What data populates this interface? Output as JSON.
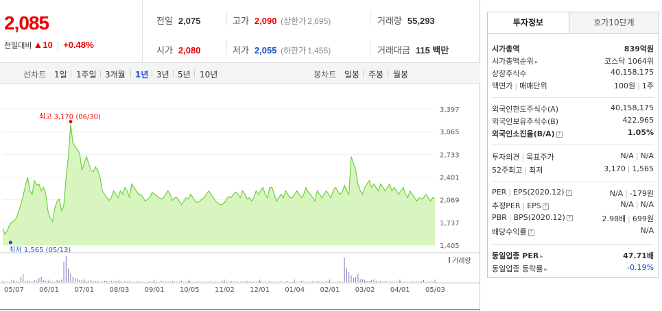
{
  "quote": {
    "price": "2,085",
    "change_label": "전일대비",
    "change_arrow": "▲",
    "change": "10",
    "change_pct": "+0.48%",
    "prev_close_label": "전일",
    "prev_close": "2,075",
    "high_label": "고가",
    "high": "2,090",
    "upper_limit_label": "(상한가",
    "upper_limit": "2,695)",
    "volume_label": "거래량",
    "volume": "55,293",
    "open_label": "시가",
    "open": "2,080",
    "low_label": "저가",
    "low": "2,055",
    "lower_limit_label": "(하한가",
    "lower_limit": "1,455)",
    "amount_label": "거래대금",
    "amount": "115 백만"
  },
  "toolbar": {
    "line_label": "선차트",
    "line_options": [
      "1일",
      "1주일",
      "3개월",
      "1년",
      "3년",
      "5년",
      "10년"
    ],
    "selected_line": "1년",
    "candle_label": "봉차트",
    "candle_options": [
      "일봉",
      "주봉",
      "월봉"
    ]
  },
  "chart_data": {
    "type": "area",
    "y_ticks": [
      "3,397",
      "3,065",
      "2,733",
      "2,401",
      "2,069",
      "1,737",
      "1,405"
    ],
    "ylim": [
      1405,
      3397
    ],
    "x_ticks": [
      "05/07",
      "06/01",
      "07/01",
      "08/03",
      "09/01",
      "10/05",
      "11/02",
      "12/01",
      "01/04",
      "02/01",
      "03/02",
      "04/01",
      "05/03"
    ],
    "high_annotation": "최고 3,170 (06/30)",
    "low_annotation": "최저 1,565 (05/13)",
    "volume_legend": "거래량",
    "area_color": "#d8f5c0",
    "line_color": "#6fcf3a",
    "series": [
      {
        "values": [
          1650,
          1565,
          1620,
          1700,
          1740,
          1760,
          1800,
          1900,
          2000,
          2120,
          2280,
          2400,
          2200,
          2150,
          2350,
          2280,
          2300,
          2200,
          2250,
          2150,
          1900,
          1800,
          1750,
          1950,
          2050,
          2080,
          1900,
          2000,
          2400,
          2700,
          3170,
          2900,
          2850,
          2800,
          2750,
          2500,
          2600,
          2700,
          2600,
          2500,
          2480,
          2550,
          2500,
          2400,
          2200,
          2150,
          2100,
          2060,
          2100,
          2200,
          2150,
          2100,
          2200,
          2150,
          2250,
          2200,
          2100,
          2300,
          2250,
          2200,
          2150,
          2150,
          2100,
          2050,
          2080,
          2100,
          2180,
          2150,
          2130,
          2100,
          2080,
          2100,
          2150,
          2200,
          2150,
          2060,
          2100,
          2100,
          2050,
          2000,
          2050,
          2100,
          2080,
          2150,
          2100,
          2050,
          2030,
          2050,
          2080,
          2100,
          2150,
          2200,
          2150,
          2100,
          2050,
          2020,
          2000,
          2000,
          2030,
          2080,
          2120,
          2100,
          2150,
          2180,
          2150,
          2100,
          2200,
          2150,
          2080,
          2100,
          2050,
          2100,
          2200,
          2150,
          2200,
          2250,
          2150,
          2100,
          2250,
          2250,
          2150,
          2050,
          2100,
          2150,
          2100,
          2200,
          2150,
          2100,
          2100,
          2150,
          2200,
          2150,
          2100,
          2150,
          2250,
          2180,
          2150,
          2100,
          2050,
          2200,
          2150,
          2100,
          2150,
          2200,
          2150,
          2100,
          2200,
          2250,
          2200,
          2150,
          2180,
          2280,
          2200,
          2150,
          2700,
          2600,
          2500,
          2300,
          2200,
          2150,
          2250,
          2300,
          2350,
          2250,
          2300,
          2250,
          2200,
          2300,
          2250,
          2200,
          2250,
          2300,
          2200,
          2250,
          2200,
          2150,
          2200,
          2250,
          2150,
          2100,
          2200,
          2150,
          2100,
          2050,
          2100,
          2080,
          2100,
          2150,
          2100,
          2050,
          2100,
          2085
        ]
      }
    ],
    "volume": [
      2,
      1,
      1,
      1,
      3,
      1,
      2,
      1,
      8,
      12,
      2,
      2,
      2,
      1,
      3,
      2,
      6,
      8,
      3,
      2,
      1,
      1,
      1,
      1,
      3,
      2,
      4,
      30,
      38,
      20,
      12,
      8,
      6,
      5,
      3,
      3,
      4,
      2,
      2,
      3,
      2,
      2,
      2,
      1,
      1,
      2,
      2,
      1,
      2,
      1,
      2,
      1,
      1,
      1,
      2,
      1,
      2,
      1,
      1,
      1,
      2,
      1,
      1,
      1,
      1,
      2,
      1,
      1,
      1,
      1,
      2,
      1,
      1,
      1,
      1,
      2,
      1,
      1,
      1,
      2,
      1,
      1,
      2,
      1,
      1,
      1,
      1,
      1,
      2,
      1,
      1,
      1,
      2,
      1,
      1,
      1,
      1,
      2,
      1,
      1,
      1,
      2,
      1,
      1,
      1,
      1,
      1,
      1,
      2,
      1,
      1,
      1,
      1,
      1,
      2,
      1,
      1,
      1,
      2,
      1,
      1,
      1,
      1,
      2,
      1,
      1,
      2,
      1,
      1,
      1,
      1,
      1,
      2,
      1,
      1,
      1,
      1,
      2,
      1,
      2,
      1,
      1,
      1,
      2,
      1,
      1,
      1,
      1,
      1,
      2,
      1,
      36,
      20,
      15,
      10,
      6,
      8,
      12,
      5,
      4,
      3,
      2,
      2,
      3,
      4,
      2,
      1,
      2,
      1,
      2,
      1,
      1,
      2,
      1,
      1,
      1,
      2,
      1,
      1,
      1,
      1,
      2,
      1,
      1,
      1,
      2,
      3,
      1,
      1,
      1,
      1
    ]
  },
  "tabs": {
    "invest_info": "투자정보",
    "orderbook": "호가10단계"
  },
  "info": {
    "market_cap_label": "시가총액",
    "market_cap": "839억원",
    "market_cap_rank_label": "시가총액순위",
    "market_cap_rank": "코스닥 1064위",
    "shares_label": "상장주식수",
    "shares": "40,158,175",
    "par_label": "액면가",
    "trade_unit_label": "매매단위",
    "par": "100원",
    "trade_unit": "1주",
    "foreign_limit_label": "외국인한도주식수(A)",
    "foreign_limit": "40,158,175",
    "foreign_hold_label": "외국인보유주식수(B)",
    "foreign_hold": "422,965",
    "foreign_ratio_label": "외국인소진율(B/A)",
    "foreign_ratio": "1.05%",
    "opinion_label": "투자의견",
    "target_label": "목표주가",
    "opinion": "N/A",
    "target": "N/A",
    "w52_high_label": "52주최고",
    "w52_low_label": "최저",
    "w52_high": "3,170",
    "w52_low": "1,565",
    "per_label": "PER",
    "eps_label": "EPS(2020.12)",
    "per": "N/A",
    "eps": "-179원",
    "est_per_label": "추정PER",
    "est_eps_label": "EPS",
    "est_per": "N/A",
    "est_eps": "N/A",
    "pbr_label": "PBR",
    "bps_label": "BPS(2020.12)",
    "pbr": "2.98배",
    "bps": "699원",
    "dividend_label": "배당수익률",
    "dividend": "N/A",
    "sector_per_label": "동일업종 PER",
    "sector_per": "47.71배",
    "sector_change_label": "동일업종 등락률",
    "sector_change": "-0.19%"
  }
}
